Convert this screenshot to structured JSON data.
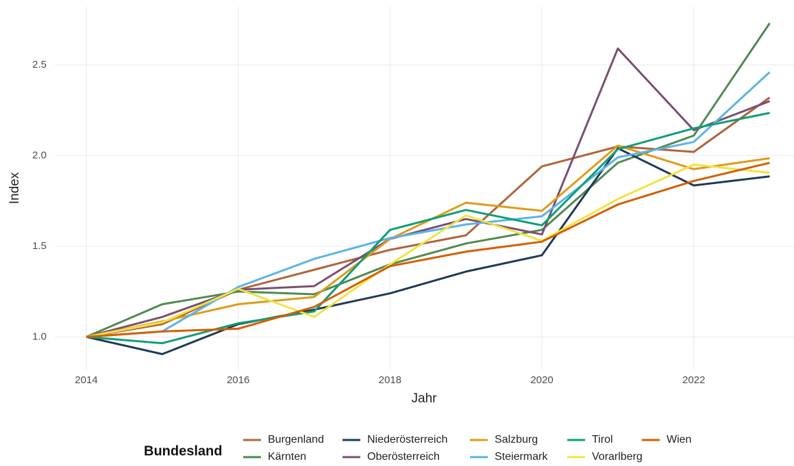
{
  "chart_data": {
    "type": "line",
    "x_label": "Jahr",
    "y_label": "Index",
    "x": [
      2014,
      2015,
      2016,
      2017,
      2018,
      2019,
      2020,
      2021,
      2022,
      2023
    ],
    "xlim": [
      2013.585,
      2023.32
    ],
    "xticks": [
      2014,
      2016,
      2018,
      2020,
      2022
    ],
    "ylim": [
      0.82,
      2.82
    ],
    "yticks": [
      {
        "value": 1.0,
        "label": "1.0"
      },
      1.5,
      {
        "value": 2.0,
        "label": "2.0"
      },
      2.5
    ],
    "grid": true,
    "legend_title": "Bundesland",
    "legend_position": "bottom",
    "series": [
      {
        "name": "Burgenland",
        "color": "#b0643a",
        "values": [
          1.0,
          1.07,
          1.26,
          1.37,
          1.48,
          1.56,
          1.94,
          2.05,
          2.02,
          2.32
        ]
      },
      {
        "name": "Kärnten",
        "color": "#4f8a4f",
        "values": [
          1.0,
          1.18,
          1.25,
          1.235,
          1.4,
          1.515,
          1.59,
          1.96,
          2.11,
          2.73
        ]
      },
      {
        "name": "Niederösterreich",
        "color": "#1f3a57",
        "values": [
          1.0,
          0.905,
          1.07,
          1.15,
          1.24,
          1.36,
          1.45,
          2.04,
          1.835,
          1.885
        ]
      },
      {
        "name": "Oberösterreich",
        "color": "#7b4f73",
        "values": [
          1.0,
          1.11,
          1.26,
          1.28,
          1.54,
          1.65,
          1.565,
          2.59,
          2.14,
          2.3
        ]
      },
      {
        "name": "Salzburg",
        "color": "#e09a1a",
        "values": [
          1.0,
          1.085,
          1.18,
          1.22,
          1.54,
          1.74,
          1.695,
          2.055,
          1.925,
          1.985
        ]
      },
      {
        "name": "Steiermark",
        "color": "#5ab4e5",
        "values": [
          1.0,
          1.03,
          1.275,
          1.43,
          1.545,
          1.62,
          1.665,
          1.99,
          2.075,
          2.46
        ]
      },
      {
        "name": "Tirol",
        "color": "#0f9e77",
        "values": [
          1.0,
          0.965,
          1.075,
          1.14,
          1.59,
          1.7,
          1.615,
          2.035,
          2.15,
          2.235
        ]
      },
      {
        "name": "Vorarlberg",
        "color": "#f0e442",
        "values": [
          1.0,
          1.08,
          1.265,
          1.11,
          1.4,
          1.67,
          1.53,
          1.76,
          1.95,
          1.905
        ]
      },
      {
        "name": "Wien",
        "color": "#d55e00",
        "values": [
          1.0,
          1.03,
          1.045,
          1.165,
          1.39,
          1.47,
          1.525,
          1.73,
          1.86,
          1.96
        ]
      }
    ]
  }
}
